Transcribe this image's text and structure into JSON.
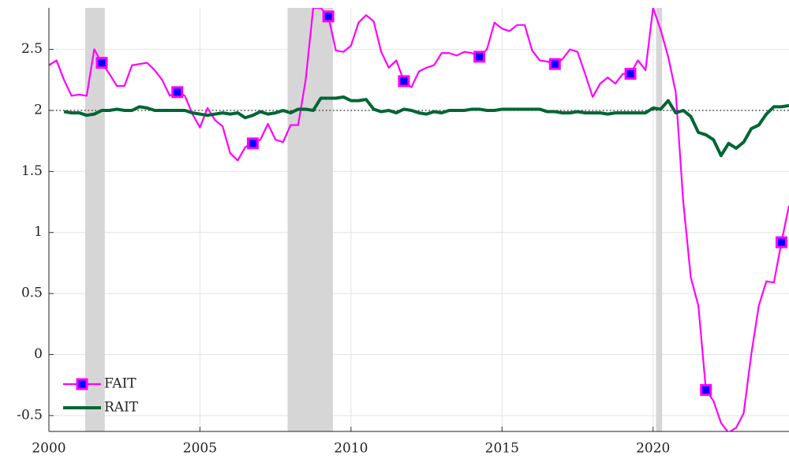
{
  "chart_data": {
    "type": "line",
    "xlim": [
      2000,
      2024.5
    ],
    "ylim": [
      -0.63,
      2.84
    ],
    "xticks": [
      2000,
      2005,
      2010,
      2015,
      2020
    ],
    "yticks": [
      -0.5,
      0,
      0.5,
      1,
      1.5,
      2,
      2.5
    ],
    "grid": true,
    "legend": "lower left",
    "reference_line": 2,
    "shaded_regions": [
      [
        2001.2,
        2001.85
      ],
      [
        2007.9,
        2009.4
      ],
      [
        2020.1,
        2020.3
      ]
    ],
    "series": [
      {
        "name": "FAIT",
        "color": "#ff00ff",
        "marker": "square",
        "marker_color": "#0000ff",
        "x": [
          2000,
          2000.25,
          2000.5,
          2000.75,
          2001,
          2001.25,
          2001.5,
          2001.75,
          2002,
          2002.25,
          2002.5,
          2002.75,
          2003,
          2003.25,
          2003.5,
          2003.75,
          2004,
          2004.25,
          2004.5,
          2004.75,
          2005,
          2005.25,
          2005.5,
          2005.75,
          2006,
          2006.25,
          2006.5,
          2006.75,
          2007,
          2007.25,
          2007.5,
          2007.75,
          2008,
          2008.25,
          2008.5,
          2008.75,
          2009,
          2009.25,
          2009.5,
          2009.75,
          2010,
          2010.25,
          2010.5,
          2010.75,
          2011,
          2011.25,
          2011.5,
          2011.75,
          2012,
          2012.25,
          2012.5,
          2012.75,
          2013,
          2013.25,
          2013.5,
          2013.75,
          2014,
          2014.25,
          2014.5,
          2014.75,
          2015,
          2015.25,
          2015.5,
          2015.75,
          2016,
          2016.25,
          2016.5,
          2016.75,
          2017,
          2017.25,
          2017.5,
          2017.75,
          2018,
          2018.25,
          2018.5,
          2018.75,
          2019,
          2019.25,
          2019.5,
          2019.75,
          2020,
          2020.25,
          2020.5,
          2020.75,
          2021,
          2021.25,
          2021.5,
          2021.75,
          2022,
          2022.25,
          2022.5,
          2022.75,
          2023,
          2023.25,
          2023.5,
          2023.75,
          2024,
          2024.25,
          2024.5
        ],
        "values": [
          2.37,
          2.41,
          2.25,
          2.12,
          2.13,
          2.12,
          2.5,
          2.39,
          2.3,
          2.2,
          2.2,
          2.37,
          2.38,
          2.39,
          2.33,
          2.25,
          2.12,
          2.15,
          2.12,
          1.97,
          1.86,
          2.02,
          1.92,
          1.87,
          1.65,
          1.59,
          1.7,
          1.73,
          1.76,
          1.89,
          1.76,
          1.74,
          1.88,
          1.88,
          2.25,
          2.84,
          2.84,
          2.77,
          2.49,
          2.48,
          2.53,
          2.72,
          2.78,
          2.73,
          2.48,
          2.35,
          2.41,
          2.24,
          2.19,
          2.32,
          2.35,
          2.37,
          2.47,
          2.47,
          2.45,
          2.48,
          2.47,
          2.44,
          2.5,
          2.72,
          2.67,
          2.65,
          2.7,
          2.7,
          2.49,
          2.41,
          2.4,
          2.38,
          2.42,
          2.5,
          2.48,
          2.3,
          2.11,
          2.22,
          2.27,
          2.22,
          2.3,
          2.3,
          2.41,
          2.33,
          2.84,
          2.66,
          2.44,
          2.15,
          1.25,
          0.63,
          0.4,
          -0.29,
          -0.38,
          -0.56,
          -0.64,
          -0.6,
          -0.48,
          0.0,
          0.4,
          0.6,
          0.59,
          0.92,
          1.22
        ]
      },
      {
        "name": "RAIT",
        "color": "#006633",
        "x": [
          2000.5,
          2000.75,
          2001,
          2001.25,
          2001.5,
          2001.75,
          2002,
          2002.25,
          2002.5,
          2002.75,
          2003,
          2003.25,
          2003.5,
          2003.75,
          2004,
          2004.25,
          2004.5,
          2004.75,
          2005,
          2005.25,
          2005.5,
          2005.75,
          2006,
          2006.25,
          2006.5,
          2006.75,
          2007,
          2007.25,
          2007.5,
          2007.75,
          2008,
          2008.25,
          2008.5,
          2008.75,
          2009,
          2009.25,
          2009.5,
          2009.75,
          2010,
          2010.25,
          2010.5,
          2010.75,
          2011,
          2011.25,
          2011.5,
          2011.75,
          2012,
          2012.25,
          2012.5,
          2012.75,
          2013,
          2013.25,
          2013.5,
          2013.75,
          2014,
          2014.25,
          2014.5,
          2014.75,
          2015,
          2015.25,
          2015.5,
          2015.75,
          2016,
          2016.25,
          2016.5,
          2016.75,
          2017,
          2017.25,
          2017.5,
          2017.75,
          2018,
          2018.25,
          2018.5,
          2018.75,
          2019,
          2019.25,
          2019.5,
          2019.75,
          2020,
          2020.25,
          2020.5,
          2020.75,
          2021,
          2021.25,
          2021.5,
          2021.75,
          2022,
          2022.25,
          2022.5,
          2022.75,
          2023,
          2023.25,
          2023.5,
          2023.75,
          2024,
          2024.25,
          2024.5
        ],
        "values": [
          1.99,
          1.98,
          1.98,
          1.96,
          1.97,
          2.0,
          2.0,
          2.01,
          2.0,
          2.0,
          2.03,
          2.02,
          2.0,
          2.0,
          2.0,
          2.0,
          2.0,
          1.98,
          1.97,
          1.96,
          1.97,
          1.98,
          1.97,
          1.98,
          1.94,
          1.96,
          1.99,
          1.97,
          1.98,
          2.0,
          1.98,
          2.01,
          2.01,
          2.0,
          2.1,
          2.1,
          2.1,
          2.11,
          2.08,
          2.08,
          2.09,
          2.01,
          1.99,
          2.0,
          1.98,
          2.01,
          2.0,
          1.98,
          1.97,
          1.99,
          1.98,
          2.0,
          2.0,
          2.0,
          2.01,
          2.01,
          2.0,
          2.0,
          2.01,
          2.01,
          2.01,
          2.01,
          2.01,
          2.01,
          1.99,
          1.99,
          1.98,
          1.98,
          1.99,
          1.98,
          1.98,
          1.98,
          1.97,
          1.98,
          1.98,
          1.98,
          1.98,
          1.98,
          2.02,
          2.01,
          2.08,
          1.98,
          2.0,
          1.95,
          1.82,
          1.8,
          1.76,
          1.63,
          1.73,
          1.69,
          1.74,
          1.85,
          1.88,
          1.97,
          2.03,
          2.03,
          2.04
        ]
      }
    ]
  }
}
